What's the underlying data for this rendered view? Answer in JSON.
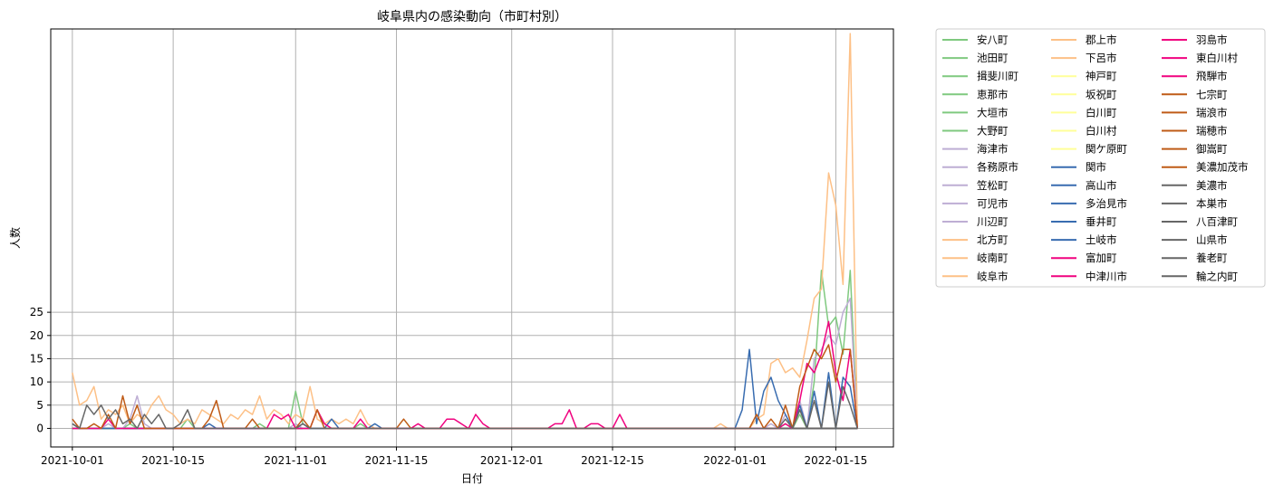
{
  "chart_data": {
    "type": "line",
    "title": "岐阜県内の感染動向（市町村別）",
    "xlabel": "日付",
    "ylabel": "人数",
    "x_start": "2021-10-01",
    "x_end": "2022-01-18",
    "xlim": [
      "2021-09-28",
      "2022-01-23"
    ],
    "ylim": [
      -4,
      86
    ],
    "yticks": [
      0,
      5,
      10,
      15,
      20,
      25
    ],
    "xticks": [
      "2021-10-01",
      "2021-10-15",
      "2021-11-01",
      "2021-11-15",
      "2021-12-01",
      "2021-12-15",
      "2022-01-01",
      "2022-01-15"
    ],
    "grid": true,
    "legend_placement": "outside-right",
    "legend_columns": 3,
    "series": [
      {
        "name": "安八町",
        "color": "#7fc97f"
      },
      {
        "name": "池田町",
        "color": "#7fc97f"
      },
      {
        "name": "揖斐川町",
        "color": "#7fc97f"
      },
      {
        "name": "恵那市",
        "color": "#7fc97f"
      },
      {
        "name": "大垣市",
        "color": "#7fc97f",
        "points": [
          [
            "2021-10-01",
            1
          ],
          [
            "2021-10-05",
            0
          ],
          [
            "2021-10-09",
            1
          ],
          [
            "2021-10-13",
            0
          ],
          [
            "2021-10-17",
            2
          ],
          [
            "2021-10-22",
            0
          ],
          [
            "2021-10-27",
            1
          ],
          [
            "2021-10-30",
            0
          ],
          [
            "2021-11-01",
            8
          ],
          [
            "2021-11-02",
            1
          ],
          [
            "2021-11-05",
            0
          ],
          [
            "2021-11-10",
            1
          ],
          [
            "2021-11-15",
            0
          ],
          [
            "2022-01-08",
            1
          ],
          [
            "2022-01-10",
            3
          ],
          [
            "2022-01-12",
            10
          ],
          [
            "2022-01-13",
            34
          ],
          [
            "2022-01-14",
            22
          ],
          [
            "2022-01-15",
            24
          ],
          [
            "2022-01-16",
            16
          ],
          [
            "2022-01-17",
            34
          ],
          [
            "2022-01-18",
            0
          ]
        ]
      },
      {
        "name": "大野町",
        "color": "#7fc97f"
      },
      {
        "name": "海津市",
        "color": "#beaed4"
      },
      {
        "name": "各務原市",
        "color": "#beaed4",
        "points": [
          [
            "2021-10-01",
            0
          ],
          [
            "2021-10-06",
            1
          ],
          [
            "2021-10-09",
            2
          ],
          [
            "2021-10-10",
            7
          ],
          [
            "2021-10-11",
            1
          ],
          [
            "2021-10-15",
            0
          ],
          [
            "2021-11-01",
            1
          ],
          [
            "2021-11-05",
            0
          ],
          [
            "2022-01-06",
            1
          ],
          [
            "2022-01-08",
            3
          ],
          [
            "2022-01-10",
            6
          ],
          [
            "2022-01-12",
            15
          ],
          [
            "2022-01-13",
            17
          ],
          [
            "2022-01-14",
            20
          ],
          [
            "2022-01-15",
            18
          ],
          [
            "2022-01-16",
            25
          ],
          [
            "2022-01-17",
            28
          ],
          [
            "2022-01-18",
            0
          ]
        ]
      },
      {
        "name": "笠松町",
        "color": "#beaed4"
      },
      {
        "name": "可児市",
        "color": "#beaed4"
      },
      {
        "name": "川辺町",
        "color": "#beaed4"
      },
      {
        "name": "北方町",
        "color": "#fdc086"
      },
      {
        "name": "岐南町",
        "color": "#fdc086"
      },
      {
        "name": "岐阜市",
        "color": "#fdc086",
        "points": [
          [
            "2021-10-01",
            12
          ],
          [
            "2021-10-02",
            5
          ],
          [
            "2021-10-03",
            6
          ],
          [
            "2021-10-04",
            9
          ],
          [
            "2021-10-05",
            2
          ],
          [
            "2021-10-06",
            4
          ],
          [
            "2021-10-07",
            3
          ],
          [
            "2021-10-08",
            5
          ],
          [
            "2021-10-09",
            1
          ],
          [
            "2021-10-10",
            3
          ],
          [
            "2021-10-11",
            2
          ],
          [
            "2021-10-12",
            5
          ],
          [
            "2021-10-13",
            7
          ],
          [
            "2021-10-14",
            4
          ],
          [
            "2021-10-15",
            3
          ],
          [
            "2021-10-16",
            1
          ],
          [
            "2021-10-17",
            2
          ],
          [
            "2021-10-18",
            1
          ],
          [
            "2021-10-19",
            4
          ],
          [
            "2021-10-20",
            3
          ],
          [
            "2021-10-21",
            2
          ],
          [
            "2021-10-22",
            1
          ],
          [
            "2021-10-23",
            3
          ],
          [
            "2021-10-24",
            2
          ],
          [
            "2021-10-25",
            4
          ],
          [
            "2021-10-26",
            3
          ],
          [
            "2021-10-27",
            7
          ],
          [
            "2021-10-28",
            2
          ],
          [
            "2021-10-29",
            4
          ],
          [
            "2021-10-30",
            3
          ],
          [
            "2021-10-31",
            1
          ],
          [
            "2021-11-01",
            3
          ],
          [
            "2021-11-02",
            2
          ],
          [
            "2021-11-03",
            9
          ],
          [
            "2021-11-04",
            2
          ],
          [
            "2021-11-05",
            1
          ],
          [
            "2021-11-06",
            2
          ],
          [
            "2021-11-07",
            1
          ],
          [
            "2021-11-08",
            2
          ],
          [
            "2021-11-09",
            1
          ],
          [
            "2021-11-10",
            4
          ],
          [
            "2021-11-11",
            1
          ],
          [
            "2021-11-12",
            0
          ],
          [
            "2021-12-29",
            0
          ],
          [
            "2021-12-30",
            1
          ],
          [
            "2022-01-01",
            0
          ],
          [
            "2022-01-04",
            2
          ],
          [
            "2022-01-05",
            3
          ],
          [
            "2022-01-06",
            14
          ],
          [
            "2022-01-07",
            15
          ],
          [
            "2022-01-08",
            12
          ],
          [
            "2022-01-09",
            13
          ],
          [
            "2022-01-10",
            11
          ],
          [
            "2022-01-11",
            19
          ],
          [
            "2022-01-12",
            28
          ],
          [
            "2022-01-13",
            30
          ],
          [
            "2022-01-14",
            55
          ],
          [
            "2022-01-15",
            48
          ],
          [
            "2022-01-16",
            31
          ],
          [
            "2022-01-17",
            85
          ],
          [
            "2022-01-18",
            0
          ]
        ]
      },
      {
        "name": "郡上市",
        "color": "#fdc086"
      },
      {
        "name": "下呂市",
        "color": "#fdc086"
      },
      {
        "name": "神戸町",
        "color": "#ffff99"
      },
      {
        "name": "坂祝町",
        "color": "#ffff99"
      },
      {
        "name": "白川町",
        "color": "#ffff99"
      },
      {
        "name": "白川村",
        "color": "#ffff99"
      },
      {
        "name": "関ケ原町",
        "color": "#ffff99"
      },
      {
        "name": "関市",
        "color": "#386cb0",
        "points": [
          [
            "2021-10-01",
            1
          ],
          [
            "2021-10-10",
            0
          ],
          [
            "2021-10-20",
            1
          ],
          [
            "2021-10-25",
            0
          ],
          [
            "2021-11-02",
            1
          ],
          [
            "2021-11-06",
            2
          ],
          [
            "2021-11-07",
            0
          ],
          [
            "2021-11-12",
            1
          ],
          [
            "2021-11-14",
            0
          ],
          [
            "2022-01-01",
            0
          ],
          [
            "2022-01-02",
            4
          ],
          [
            "2022-01-03",
            17
          ],
          [
            "2022-01-04",
            1
          ],
          [
            "2022-01-05",
            8
          ],
          [
            "2022-01-06",
            11
          ],
          [
            "2022-01-07",
            6
          ],
          [
            "2022-01-08",
            3
          ],
          [
            "2022-01-10",
            5
          ],
          [
            "2022-01-12",
            8
          ],
          [
            "2022-01-14",
            12
          ],
          [
            "2022-01-16",
            11
          ],
          [
            "2022-01-17",
            9
          ],
          [
            "2022-01-18",
            0
          ]
        ]
      },
      {
        "name": "高山市",
        "color": "#386cb0"
      },
      {
        "name": "多治見市",
        "color": "#386cb0"
      },
      {
        "name": "垂井町",
        "color": "#386cb0"
      },
      {
        "name": "土岐市",
        "color": "#386cb0"
      },
      {
        "name": "富加町",
        "color": "#f0027f",
        "points": [
          [
            "2021-10-01",
            0
          ],
          [
            "2021-10-06",
            2
          ],
          [
            "2021-10-08",
            0
          ],
          [
            "2021-10-29",
            3
          ],
          [
            "2021-10-30",
            2
          ],
          [
            "2021-10-31",
            3
          ],
          [
            "2021-11-01",
            0
          ],
          [
            "2021-11-04",
            4
          ],
          [
            "2021-11-05",
            1
          ],
          [
            "2021-11-10",
            2
          ],
          [
            "2021-11-11",
            0
          ],
          [
            "2021-11-18",
            1
          ],
          [
            "2021-11-19",
            0
          ],
          [
            "2021-11-22",
            2
          ],
          [
            "2021-11-23",
            2
          ],
          [
            "2021-11-24",
            1
          ],
          [
            "2021-11-26",
            3
          ],
          [
            "2021-11-27",
            1
          ],
          [
            "2021-11-29",
            0
          ],
          [
            "2021-12-07",
            1
          ],
          [
            "2021-12-08",
            1
          ],
          [
            "2021-12-09",
            4
          ],
          [
            "2021-12-10",
            0
          ],
          [
            "2021-12-12",
            1
          ],
          [
            "2021-12-13",
            1
          ],
          [
            "2021-12-14",
            0
          ],
          [
            "2021-12-16",
            3
          ],
          [
            "2021-12-17",
            0
          ],
          [
            "2022-01-08",
            1
          ],
          [
            "2022-01-10",
            6
          ],
          [
            "2022-01-11",
            14
          ],
          [
            "2022-01-12",
            12
          ],
          [
            "2022-01-13",
            16
          ],
          [
            "2022-01-14",
            23
          ],
          [
            "2022-01-15",
            12
          ],
          [
            "2022-01-16",
            6
          ],
          [
            "2022-01-17",
            17
          ],
          [
            "2022-01-18",
            0
          ]
        ]
      },
      {
        "name": "中津川市",
        "color": "#f0027f"
      },
      {
        "name": "羽島市",
        "color": "#f0027f"
      },
      {
        "name": "東白川村",
        "color": "#f0027f"
      },
      {
        "name": "飛騨市",
        "color": "#f0027f"
      },
      {
        "name": "七宗町",
        "color": "#bf5b17"
      },
      {
        "name": "瑞浪市",
        "color": "#bf5b17"
      },
      {
        "name": "瑞穂市",
        "color": "#bf5b17",
        "points": [
          [
            "2021-10-01",
            2
          ],
          [
            "2021-10-04",
            1
          ],
          [
            "2021-10-06",
            3
          ],
          [
            "2021-10-08",
            7
          ],
          [
            "2021-10-09",
            1
          ],
          [
            "2021-10-10",
            5
          ],
          [
            "2021-10-11",
            0
          ],
          [
            "2021-10-20",
            2
          ],
          [
            "2021-10-21",
            6
          ],
          [
            "2021-10-22",
            0
          ],
          [
            "2021-10-26",
            2
          ],
          [
            "2021-10-27",
            0
          ],
          [
            "2021-11-02",
            2
          ],
          [
            "2021-11-04",
            4
          ],
          [
            "2021-11-05",
            0
          ],
          [
            "2021-11-16",
            2
          ],
          [
            "2021-11-17",
            0
          ],
          [
            "2022-01-04",
            3
          ],
          [
            "2022-01-06",
            2
          ],
          [
            "2022-01-08",
            5
          ],
          [
            "2022-01-10",
            9
          ],
          [
            "2022-01-11",
            13
          ],
          [
            "2022-01-12",
            17
          ],
          [
            "2022-01-13",
            15
          ],
          [
            "2022-01-14",
            18
          ],
          [
            "2022-01-15",
            10
          ],
          [
            "2022-01-16",
            17
          ],
          [
            "2022-01-17",
            17
          ],
          [
            "2022-01-18",
            0
          ]
        ]
      },
      {
        "name": "御嵩町",
        "color": "#bf5b17"
      },
      {
        "name": "美濃加茂市",
        "color": "#bf5b17"
      },
      {
        "name": "美濃市",
        "color": "#666666"
      },
      {
        "name": "本巣市",
        "color": "#666666",
        "points": [
          [
            "2021-10-01",
            1
          ],
          [
            "2021-10-03",
            5
          ],
          [
            "2021-10-04",
            3
          ],
          [
            "2021-10-05",
            5
          ],
          [
            "2021-10-06",
            2
          ],
          [
            "2021-10-07",
            4
          ],
          [
            "2021-10-08",
            1
          ],
          [
            "2021-10-09",
            2
          ],
          [
            "2021-10-11",
            3
          ],
          [
            "2021-10-12",
            1
          ],
          [
            "2021-10-13",
            3
          ],
          [
            "2021-10-14",
            0
          ],
          [
            "2021-10-16",
            1
          ],
          [
            "2021-10-17",
            4
          ],
          [
            "2021-10-18",
            0
          ],
          [
            "2021-11-02",
            1
          ],
          [
            "2021-11-03",
            0
          ],
          [
            "2022-01-08",
            2
          ],
          [
            "2022-01-10",
            4
          ],
          [
            "2022-01-12",
            6
          ],
          [
            "2022-01-14",
            10
          ],
          [
            "2022-01-16",
            9
          ],
          [
            "2022-01-17",
            5
          ],
          [
            "2022-01-18",
            0
          ]
        ]
      },
      {
        "name": "八百津町",
        "color": "#666666"
      },
      {
        "name": "山県市",
        "color": "#666666"
      },
      {
        "name": "養老町",
        "color": "#666666"
      },
      {
        "name": "輪之内町",
        "color": "#666666"
      }
    ]
  }
}
